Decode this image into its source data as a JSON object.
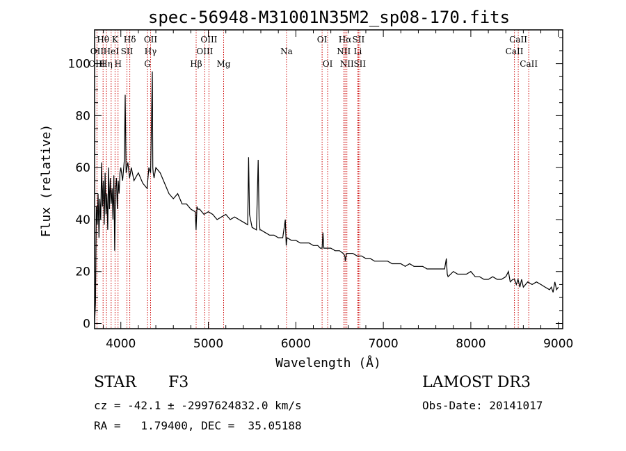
{
  "chart_data": {
    "type": "line",
    "title": "spec-56948-M31001N35M2_sp08-170.fits",
    "xlabel": "Wavelength (Å)",
    "ylabel": "Flux (relative)",
    "xlim": [
      3700,
      9050
    ],
    "ylim": [
      -2,
      113
    ],
    "x_ticks": [
      4000,
      5000,
      6000,
      7000,
      8000,
      9000
    ],
    "y_ticks": [
      0,
      20,
      40,
      60,
      80,
      100
    ],
    "series": [
      {
        "name": "spectrum",
        "x": [
          3700,
          3710,
          3720,
          3730,
          3740,
          3750,
          3760,
          3770,
          3780,
          3790,
          3800,
          3810,
          3820,
          3830,
          3840,
          3850,
          3860,
          3870,
          3880,
          3890,
          3900,
          3910,
          3920,
          3930,
          3940,
          3950,
          3960,
          3970,
          3980,
          3990,
          4000,
          4020,
          4040,
          4050,
          4060,
          4080,
          4100,
          4120,
          4150,
          4200,
          4250,
          4300,
          4320,
          4340,
          4360,
          4365,
          4370,
          4380,
          4400,
          4450,
          4500,
          4550,
          4600,
          4650,
          4700,
          4750,
          4800,
          4850,
          4860,
          4870,
          4880,
          4900,
          4950,
          5000,
          5050,
          5100,
          5150,
          5200,
          5250,
          5300,
          5350,
          5400,
          5450,
          5460,
          5470,
          5500,
          5550,
          5570,
          5580,
          5590,
          5600,
          5650,
          5700,
          5750,
          5800,
          5850,
          5880,
          5890,
          5900,
          5950,
          6000,
          6050,
          6100,
          6150,
          6200,
          6250,
          6280,
          6300,
          6310,
          6320,
          6350,
          6400,
          6450,
          6500,
          6540,
          6560,
          6565,
          6580,
          6600,
          6650,
          6700,
          6750,
          6800,
          6850,
          6900,
          6950,
          7000,
          7050,
          7100,
          7150,
          7200,
          7250,
          7300,
          7350,
          7400,
          7450,
          7500,
          7550,
          7600,
          7650,
          7700,
          7720,
          7730,
          7740,
          7800,
          7850,
          7900,
          7950,
          8000,
          8050,
          8100,
          8150,
          8200,
          8250,
          8300,
          8350,
          8400,
          8430,
          8450,
          8480,
          8500,
          8520,
          8540,
          8560,
          8580,
          8600,
          8650,
          8700,
          8750,
          8800,
          8850,
          8900,
          8920,
          8940,
          8960,
          8980,
          9000
        ],
        "y": [
          0,
          8,
          45,
          38,
          50,
          33,
          48,
          40,
          62,
          45,
          55,
          38,
          58,
          42,
          50,
          36,
          60,
          44,
          56,
          46,
          52,
          40,
          57,
          28,
          52,
          56,
          44,
          55,
          50,
          58,
          60,
          55,
          63,
          88,
          58,
          62,
          56,
          60,
          55,
          58,
          54,
          52,
          60,
          58,
          97,
          60,
          58,
          56,
          60,
          58,
          54,
          50,
          48,
          50,
          46,
          46,
          44,
          43,
          36,
          45,
          44,
          44,
          42,
          43,
          42,
          40,
          41,
          42,
          40,
          41,
          40,
          39,
          38,
          64,
          42,
          37,
          36,
          63,
          40,
          36,
          36,
          35,
          34,
          34,
          33,
          33,
          40,
          30,
          33,
          32,
          32,
          31,
          31,
          31,
          30,
          30,
          29,
          29,
          35,
          29,
          29,
          29,
          28,
          28,
          27,
          26,
          24,
          27,
          27,
          27,
          26,
          26,
          25,
          25,
          24,
          24,
          24,
          24,
          23,
          23,
          23,
          22,
          23,
          22,
          22,
          22,
          21,
          21,
          21,
          21,
          21,
          25,
          19,
          18,
          20,
          19,
          19,
          19,
          20,
          18,
          18,
          17,
          17,
          18,
          17,
          17,
          18,
          20,
          16,
          17,
          17,
          15,
          17,
          14,
          17,
          14,
          16,
          15,
          16,
          15,
          14,
          13,
          14,
          12,
          16,
          13,
          14
        ]
      }
    ],
    "line_labels": [
      {
        "text": "Hθ",
        "wl": 3797,
        "row": 0
      },
      {
        "text": "K",
        "wl": 3934,
        "row": 0
      },
      {
        "text": "Hδ",
        "wl": 4102,
        "row": 0
      },
      {
        "text": "OII",
        "wl": 4340,
        "row": 0
      },
      {
        "text": "OIII",
        "wl": 5007,
        "row": 0
      },
      {
        "text": "OI",
        "wl": 6300,
        "row": 0
      },
      {
        "text": "Hα",
        "wl": 6563,
        "row": 0
      },
      {
        "text": "SII",
        "wl": 6716,
        "row": 0
      },
      {
        "text": "CaII",
        "wl": 8542,
        "row": 0
      },
      {
        "text": "OII",
        "wl": 3727,
        "row": 1
      },
      {
        "text": "HeI",
        "wl": 3889,
        "row": 1
      },
      {
        "text": "SII",
        "wl": 4070,
        "row": 1
      },
      {
        "text": "Hγ",
        "wl": 4340,
        "row": 1
      },
      {
        "text": "OIII",
        "wl": 4959,
        "row": 1
      },
      {
        "text": "Na",
        "wl": 5893,
        "row": 1
      },
      {
        "text": "NII",
        "wl": 6548,
        "row": 1
      },
      {
        "text": "Li",
        "wl": 6708,
        "row": 1
      },
      {
        "text": "CaII",
        "wl": 8498,
        "row": 1
      },
      {
        "text": "OIII",
        "wl": 3727,
        "row": 2
      },
      {
        "text": "Hη",
        "wl": 3835,
        "row": 2
      },
      {
        "text": "H",
        "wl": 3968,
        "row": 2
      },
      {
        "text": "G",
        "wl": 4305,
        "row": 2
      },
      {
        "text": "Hβ",
        "wl": 4861,
        "row": 2
      },
      {
        "text": "Mg",
        "wl": 5175,
        "row": 2
      },
      {
        "text": "OI",
        "wl": 6364,
        "row": 2
      },
      {
        "text": "NII",
        "wl": 6583,
        "row": 2
      },
      {
        "text": "SII",
        "wl": 6731,
        "row": 2
      },
      {
        "text": "CaII",
        "wl": 8662,
        "row": 2
      }
    ],
    "marker_lines": [
      3727,
      3797,
      3835,
      3889,
      3934,
      3968,
      4070,
      4102,
      4305,
      4340,
      4861,
      4959,
      5007,
      5175,
      5893,
      6300,
      6364,
      6548,
      6563,
      6583,
      6708,
      6716,
      6731,
      8498,
      8542,
      8662
    ]
  },
  "info": {
    "object_class": "STAR",
    "subclass": "F3",
    "survey": "LAMOST DR3",
    "cz_line": "cz = -42.1 ± -2997624832.0 km/s",
    "obs_date_line": "Obs-Date: 20141017",
    "coords_line": "RA =   1.79400, DEC =  35.05188"
  },
  "colors": {
    "spectrum": "#000000",
    "marker": "#cc0000",
    "axes": "#000000"
  }
}
